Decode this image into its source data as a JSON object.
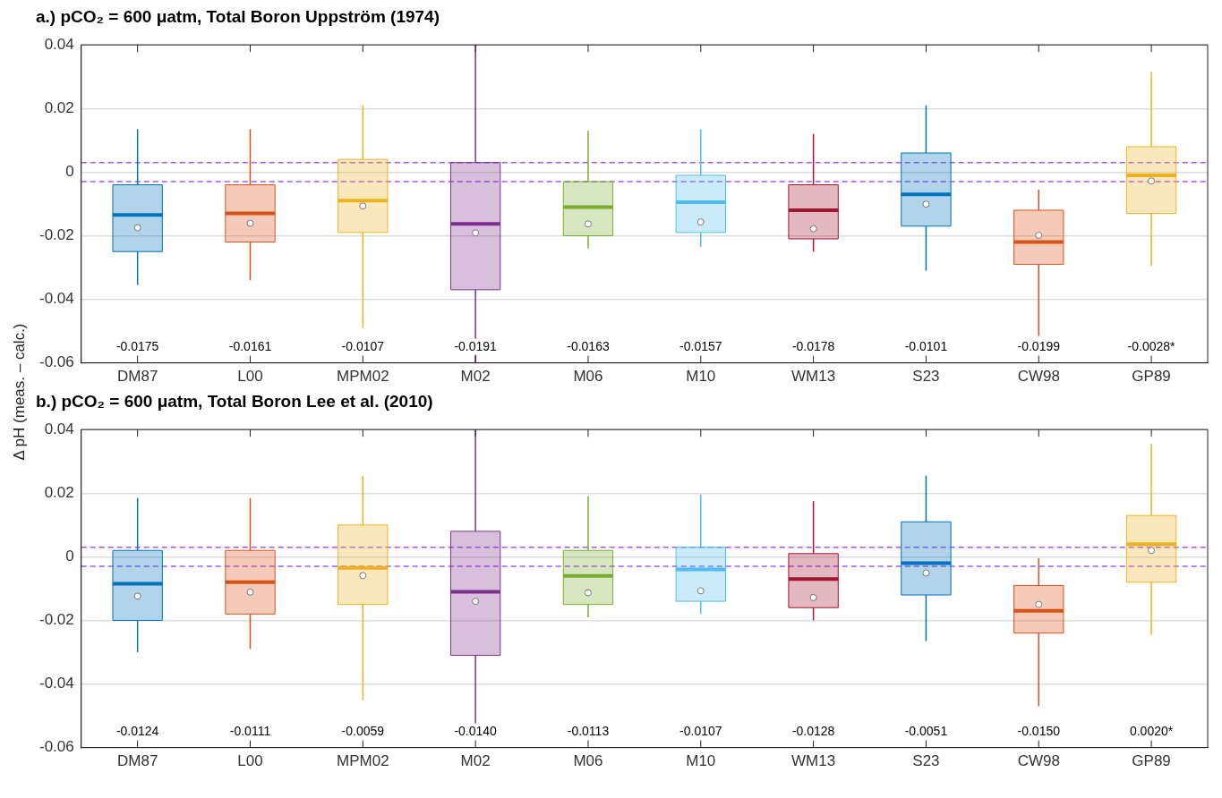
{
  "chart_data": [
    {
      "type": "box",
      "title": "a.) pCO₂ = 600 μatm, Total Boron Uppström (1974)",
      "ylabel": "Δ pH (meas. – calc.)",
      "categories": [
        "DM87",
        "L00",
        "MPM02",
        "M02",
        "M06",
        "M10",
        "WM13",
        "S23",
        "CW98",
        "GP89"
      ],
      "colors": [
        "#0072bd",
        "#d95319",
        "#edb120",
        "#7e2f8e",
        "#77ac30",
        "#4dbeee",
        "#a2142f",
        "#0072bd",
        "#d95319",
        "#edb120"
      ],
      "boxes": [
        {
          "low": -0.0355,
          "q1": -0.025,
          "median": -0.0175,
          "q3": -0.004,
          "high": 0.0135,
          "mean": -0.0135
        },
        {
          "low": -0.034,
          "q1": -0.022,
          "median": -0.0161,
          "q3": -0.004,
          "high": 0.0135,
          "mean": -0.013
        },
        {
          "low": -0.049,
          "q1": -0.019,
          "median": -0.0107,
          "q3": 0.004,
          "high": 0.021,
          "mean": -0.009
        },
        {
          "low": -0.06,
          "q1": -0.037,
          "median": -0.0191,
          "q3": 0.003,
          "high": 0.04,
          "mean": -0.0163
        },
        {
          "low": -0.024,
          "q1": -0.02,
          "median": -0.0163,
          "q3": -0.003,
          "high": 0.013,
          "mean": -0.011
        },
        {
          "low": -0.0235,
          "q1": -0.019,
          "median": -0.0157,
          "q3": -0.001,
          "high": 0.0135,
          "mean": -0.0095
        },
        {
          "low": -0.025,
          "q1": -0.021,
          "median": -0.0178,
          "q3": -0.004,
          "high": 0.012,
          "mean": -0.012
        },
        {
          "low": -0.031,
          "q1": -0.017,
          "median": -0.0101,
          "q3": 0.006,
          "high": 0.021,
          "mean": -0.007
        },
        {
          "low": -0.0515,
          "q1": -0.029,
          "median": -0.0199,
          "q3": -0.012,
          "high": -0.0055,
          "mean": -0.022
        },
        {
          "low": -0.0295,
          "q1": -0.013,
          "median": -0.0028,
          "q3": 0.008,
          "high": 0.0315,
          "mean": -0.001
        }
      ],
      "value_labels": [
        "-0.0175",
        "-0.0161",
        "-0.0107",
        "-0.0191",
        "-0.0163",
        "-0.0157",
        "-0.0178",
        "-0.0101",
        "-0.0199",
        "-0.0028*"
      ],
      "ylim": [
        -0.06,
        0.04
      ],
      "yticks": [
        -0.06,
        -0.04,
        -0.02,
        0,
        0.02,
        0.04
      ],
      "grid": "y",
      "ref_lines": [
        {
          "axis": "y",
          "value": 0.003,
          "color": "#a855f7",
          "line_style": "dashed"
        },
        {
          "axis": "y",
          "value": -0.003,
          "color": "#a855f7",
          "line_style": "dashed"
        }
      ]
    },
    {
      "type": "box",
      "title": "b.) pCO₂ = 600 μatm, Total Boron Lee et al. (2010)",
      "categories": [
        "DM87",
        "L00",
        "MPM02",
        "M02",
        "M06",
        "M10",
        "WM13",
        "S23",
        "CW98",
        "GP89"
      ],
      "colors": [
        "#0072bd",
        "#d95319",
        "#edb120",
        "#7e2f8e",
        "#77ac30",
        "#4dbeee",
        "#a2142f",
        "#0072bd",
        "#d95319",
        "#edb120"
      ],
      "boxes": [
        {
          "low": -0.03,
          "q1": -0.02,
          "median": -0.0124,
          "q3": 0.002,
          "high": 0.0185,
          "mean": -0.0085
        },
        {
          "low": -0.029,
          "q1": -0.018,
          "median": -0.0111,
          "q3": 0.002,
          "high": 0.0185,
          "mean": -0.008
        },
        {
          "low": -0.045,
          "q1": -0.015,
          "median": -0.0059,
          "q3": 0.01,
          "high": 0.0255,
          "mean": -0.0035
        },
        {
          "low": -0.057,
          "q1": -0.031,
          "median": -0.014,
          "q3": 0.008,
          "high": 0.04,
          "mean": -0.011
        },
        {
          "low": -0.019,
          "q1": -0.015,
          "median": -0.0113,
          "q3": 0.002,
          "high": 0.019,
          "mean": -0.006
        },
        {
          "low": -0.018,
          "q1": -0.014,
          "median": -0.0107,
          "q3": 0.003,
          "high": 0.0195,
          "mean": -0.004
        },
        {
          "low": -0.02,
          "q1": -0.016,
          "median": -0.0128,
          "q3": 0.001,
          "high": 0.0175,
          "mean": -0.007
        },
        {
          "low": -0.0265,
          "q1": -0.012,
          "median": -0.0051,
          "q3": 0.011,
          "high": 0.0255,
          "mean": -0.002
        },
        {
          "low": -0.047,
          "q1": -0.024,
          "median": -0.015,
          "q3": -0.009,
          "high": -0.0005,
          "mean": -0.017
        },
        {
          "low": -0.0245,
          "q1": -0.008,
          "median": 0.002,
          "q3": 0.013,
          "high": 0.0355,
          "mean": 0.004
        }
      ],
      "value_labels": [
        "-0.0124",
        "-0.0111",
        "-0.0059",
        "-0.0140",
        "-0.0113",
        "-0.0107",
        "-0.0128",
        "-0.0051",
        "-0.0150",
        "0.0020*"
      ],
      "ylim": [
        -0.06,
        0.04
      ],
      "yticks": [
        -0.06,
        -0.04,
        -0.02,
        0,
        0.02,
        0.04
      ],
      "grid": "y",
      "ref_lines": [
        {
          "axis": "y",
          "value": 0.003,
          "color": "#a855f7",
          "line_style": "dashed"
        },
        {
          "axis": "y",
          "value": -0.003,
          "color": "#a855f7",
          "line_style": "dashed"
        }
      ]
    }
  ]
}
